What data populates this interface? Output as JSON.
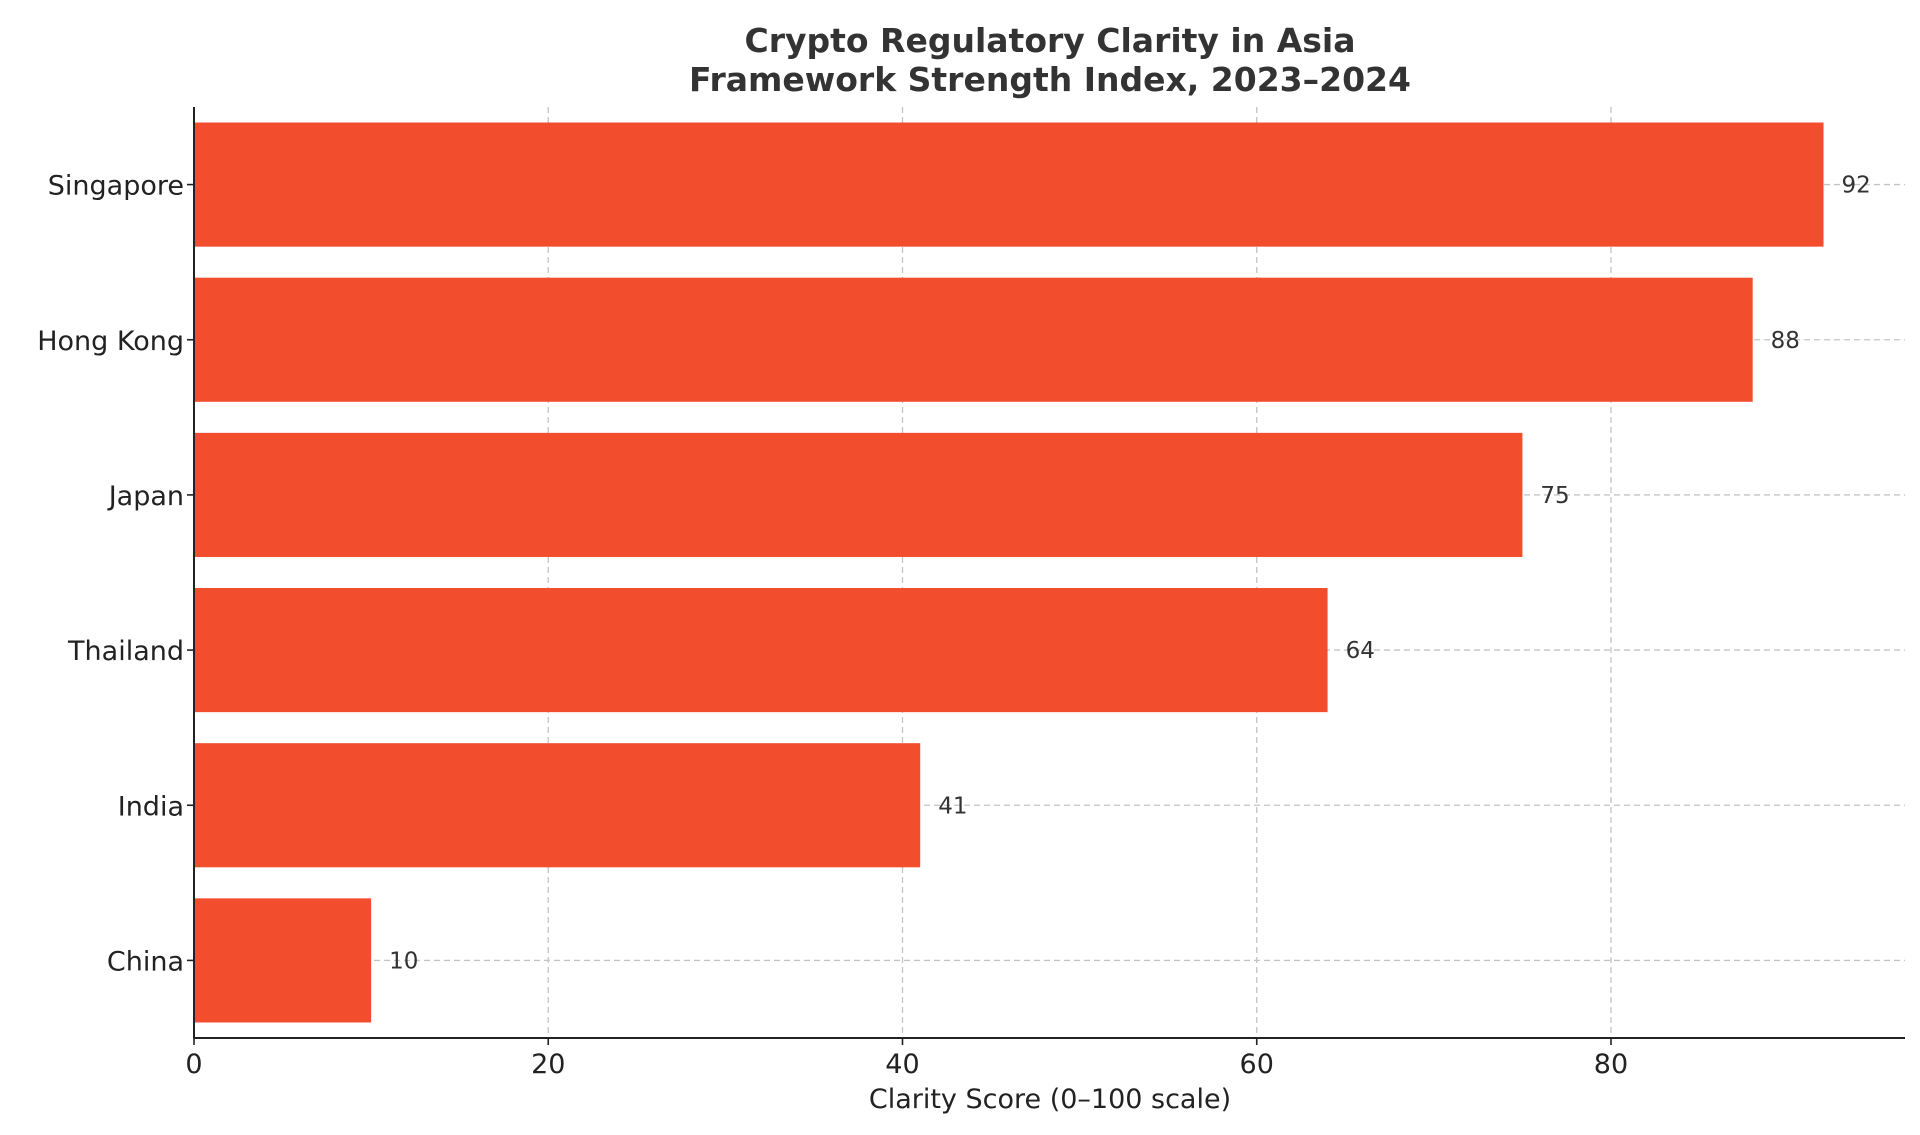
{
  "chart_data": {
    "type": "bar",
    "orientation": "horizontal",
    "title": "Crypto Regulatory Clarity in Asia",
    "subtitle": "Framework Strength Index, 2023–2024",
    "xlabel": "Clarity Score (0–100 scale)",
    "ylabel": "",
    "categories": [
      "Singapore",
      "Hong Kong",
      "Japan",
      "Thailand",
      "India",
      "China"
    ],
    "values": [
      92,
      88,
      75,
      64,
      41,
      10
    ],
    "data_labels": [
      "92",
      "88",
      "75",
      "64",
      "41",
      "10"
    ],
    "xlim": [
      0,
      96.6
    ],
    "x_ticks": [
      0,
      20,
      40,
      60,
      80
    ],
    "x_tick_labels": [
      "0",
      "20",
      "40",
      "60",
      "80"
    ],
    "grid": true,
    "legend": false,
    "colors": {
      "bar": "#f24e2e",
      "text": "#333333",
      "grid": "#c4c4c4",
      "axis": "#222222"
    }
  }
}
